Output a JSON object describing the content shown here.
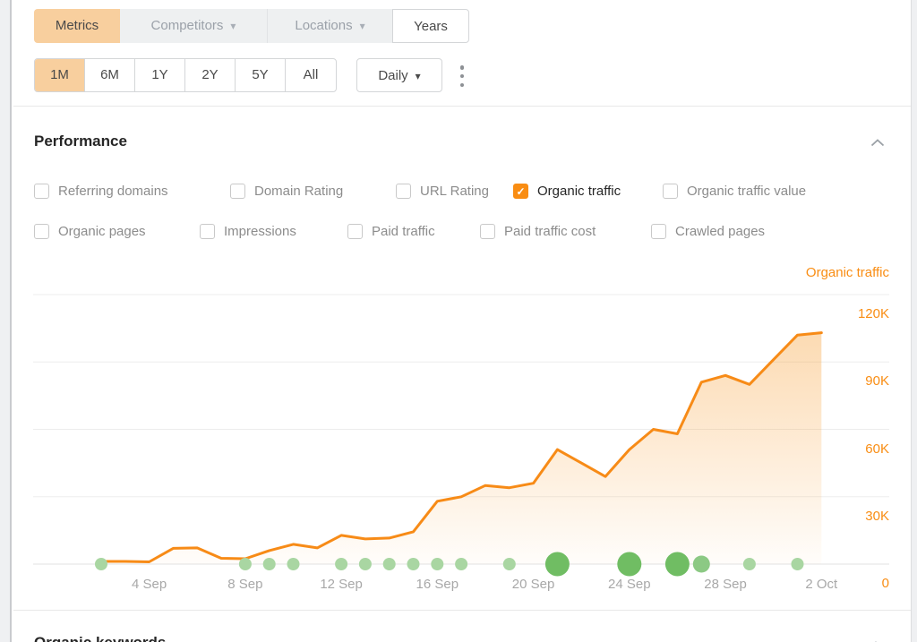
{
  "icons": {
    "caret_down": "▾",
    "checkmark": "✓"
  },
  "toolbar": {
    "metrics_label": "Metrics",
    "competitors_label": "Competitors",
    "locations_label": "Locations",
    "years_label": "Years",
    "ranges": [
      "1M",
      "6M",
      "1Y",
      "2Y",
      "5Y",
      "All"
    ],
    "active_range": "1M",
    "granularity_label": "Daily"
  },
  "performance": {
    "title": "Performance",
    "rows": [
      {
        "items": [
          {
            "label": "Referring domains",
            "checked": false
          },
          {
            "label": "Domain Rating",
            "checked": false
          },
          {
            "label": "URL Rating",
            "checked": false
          },
          {
            "label": "Organic traffic",
            "checked": true
          },
          {
            "label": "Organic traffic value",
            "checked": false
          }
        ]
      },
      {
        "items": [
          {
            "label": "Organic pages",
            "checked": false
          },
          {
            "label": "Impressions",
            "checked": false
          },
          {
            "label": "Paid traffic",
            "checked": false
          },
          {
            "label": "Paid traffic cost",
            "checked": false
          },
          {
            "label": "Crawled pages",
            "checked": false
          }
        ]
      }
    ]
  },
  "chart_data": {
    "type": "area",
    "series_name": "Organic traffic",
    "legend_position": "top-right",
    "grid": true,
    "line_color": "#f78b17",
    "x": [
      "2 Sep",
      "3 Sep",
      "4 Sep",
      "5 Sep",
      "6 Sep",
      "7 Sep",
      "8 Sep",
      "9 Sep",
      "10 Sep",
      "11 Sep",
      "12 Sep",
      "13 Sep",
      "14 Sep",
      "15 Sep",
      "16 Sep",
      "17 Sep",
      "18 Sep",
      "19 Sep",
      "20 Sep",
      "21 Sep",
      "22 Sep",
      "23 Sep",
      "24 Sep",
      "25 Sep",
      "26 Sep",
      "27 Sep",
      "28 Sep",
      "29 Sep",
      "30 Sep",
      "1 Oct",
      "2 Oct"
    ],
    "values": [
      1200,
      1200,
      1000,
      7000,
      7200,
      2600,
      2400,
      6000,
      8800,
      7200,
      12800,
      11200,
      11600,
      14400,
      28000,
      30000,
      35000,
      34000,
      36000,
      51000,
      45000,
      39000,
      51000,
      60000,
      58000,
      81000,
      84000,
      80000,
      91000,
      102000,
      103000
    ],
    "ylim": [
      0,
      132000
    ],
    "y_ticks": [
      {
        "label": "120K",
        "value": 120000
      },
      {
        "label": "90K",
        "value": 90000
      },
      {
        "label": "60K",
        "value": 60000
      },
      {
        "label": "30K",
        "value": 30000
      },
      {
        "label": "0",
        "value": 0
      }
    ],
    "x_tick_labels": [
      "4 Sep",
      "8 Sep",
      "12 Sep",
      "16 Sep",
      "20 Sep",
      "24 Sep",
      "28 Sep",
      "2 Oct"
    ],
    "x_tick_indices": [
      2,
      6,
      10,
      14,
      18,
      22,
      26,
      30
    ],
    "event_dots": [
      {
        "date": "2 Sep",
        "index": 0,
        "size": "small"
      },
      {
        "date": "8 Sep",
        "index": 6,
        "size": "small"
      },
      {
        "date": "9 Sep",
        "index": 7,
        "size": "small"
      },
      {
        "date": "10 Sep",
        "index": 8,
        "size": "small"
      },
      {
        "date": "12 Sep",
        "index": 10,
        "size": "small"
      },
      {
        "date": "13 Sep",
        "index": 11,
        "size": "small"
      },
      {
        "date": "14 Sep",
        "index": 12,
        "size": "small"
      },
      {
        "date": "15 Sep",
        "index": 13,
        "size": "small"
      },
      {
        "date": "16 Sep",
        "index": 14,
        "size": "small"
      },
      {
        "date": "17 Sep",
        "index": 15,
        "size": "small"
      },
      {
        "date": "19 Sep",
        "index": 17,
        "size": "small"
      },
      {
        "date": "21 Sep",
        "index": 19,
        "size": "large"
      },
      {
        "date": "24 Sep",
        "index": 22,
        "size": "large"
      },
      {
        "date": "26 Sep",
        "index": 24,
        "size": "large"
      },
      {
        "date": "27 Sep",
        "index": 25,
        "size": "medium"
      },
      {
        "date": "29 Sep",
        "index": 27,
        "size": "small"
      },
      {
        "date": "1 Oct",
        "index": 29,
        "size": "small"
      }
    ]
  },
  "next_section": {
    "title": "Organic keywords"
  }
}
